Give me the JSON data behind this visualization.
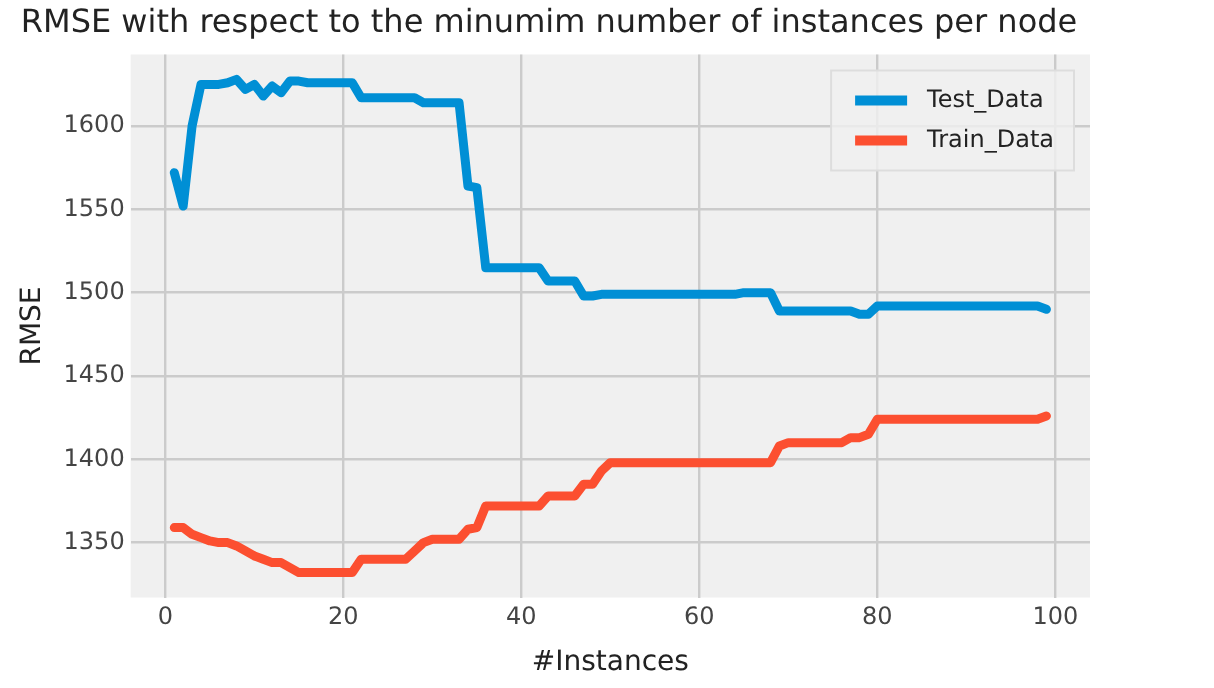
{
  "chart_data": {
    "type": "line",
    "title": "RMSE with respect to the minumim number of instances per node",
    "xlabel": "#Instances",
    "ylabel": "RMSE",
    "x": [
      1,
      2,
      3,
      4,
      5,
      6,
      7,
      8,
      9,
      10,
      11,
      12,
      13,
      14,
      15,
      16,
      17,
      18,
      19,
      20,
      21,
      22,
      23,
      24,
      25,
      26,
      27,
      28,
      29,
      30,
      31,
      32,
      33,
      34,
      35,
      36,
      37,
      38,
      39,
      40,
      41,
      42,
      43,
      44,
      45,
      46,
      47,
      48,
      49,
      50,
      51,
      52,
      53,
      54,
      55,
      56,
      57,
      58,
      59,
      60,
      61,
      62,
      63,
      64,
      65,
      66,
      67,
      68,
      69,
      70,
      71,
      72,
      73,
      74,
      75,
      76,
      77,
      78,
      79,
      80,
      81,
      82,
      83,
      84,
      85,
      86,
      87,
      88,
      89,
      90,
      91,
      92,
      93,
      94,
      95,
      96,
      97,
      98,
      99
    ],
    "series": [
      {
        "name": "Test_Data",
        "color": "#008fd5",
        "values": [
          1572,
          1552,
          1600,
          1625,
          1625,
          1625,
          1626,
          1628,
          1622,
          1625,
          1618,
          1624,
          1620,
          1627,
          1627,
          1626,
          1626,
          1626,
          1626,
          1626,
          1626,
          1617,
          1617,
          1617,
          1617,
          1617,
          1617,
          1617,
          1614,
          1614,
          1614,
          1614,
          1614,
          1564,
          1563,
          1515,
          1515,
          1515,
          1515,
          1515,
          1515,
          1515,
          1507,
          1507,
          1507,
          1507,
          1498,
          1498,
          1499,
          1499,
          1499,
          1499,
          1499,
          1499,
          1499,
          1499,
          1499,
          1499,
          1499,
          1499,
          1499,
          1499,
          1499,
          1499,
          1500,
          1500,
          1500,
          1500,
          1489,
          1489,
          1489,
          1489,
          1489,
          1489,
          1489,
          1489,
          1489,
          1487,
          1487,
          1492,
          1492,
          1492,
          1492,
          1492,
          1492,
          1492,
          1492,
          1492,
          1492,
          1492,
          1492,
          1492,
          1492,
          1492,
          1492,
          1492,
          1492,
          1492,
          1490
        ]
      },
      {
        "name": "Train_Data",
        "color": "#fc4f30",
        "values": [
          1359,
          1359,
          1355,
          1353,
          1351,
          1350,
          1350,
          1348,
          1345,
          1342,
          1340,
          1338,
          1338,
          1335,
          1332,
          1332,
          1332,
          1332,
          1332,
          1332,
          1332,
          1340,
          1340,
          1340,
          1340,
          1340,
          1340,
          1345,
          1350,
          1352,
          1352,
          1352,
          1352,
          1358,
          1359,
          1372,
          1372,
          1372,
          1372,
          1372,
          1372,
          1372,
          1378,
          1378,
          1378,
          1378,
          1385,
          1385,
          1393,
          1398,
          1398,
          1398,
          1398,
          1398,
          1398,
          1398,
          1398,
          1398,
          1398,
          1398,
          1398,
          1398,
          1398,
          1398,
          1398,
          1398,
          1398,
          1398,
          1408,
          1410,
          1410,
          1410,
          1410,
          1410,
          1410,
          1410,
          1413,
          1413,
          1415,
          1424,
          1424,
          1424,
          1424,
          1424,
          1424,
          1424,
          1424,
          1424,
          1424,
          1424,
          1424,
          1424,
          1424,
          1424,
          1424,
          1424,
          1424,
          1424,
          1426
        ]
      }
    ],
    "xlim": [
      -3.9,
      103.9
    ],
    "ylim": [
      1317,
      1643
    ],
    "xticks": [
      0,
      20,
      40,
      60,
      80,
      100
    ],
    "yticks": [
      1350,
      1400,
      1450,
      1500,
      1550,
      1600
    ],
    "grid": true,
    "legend": "top right",
    "marker": "none",
    "line_style": "solid"
  }
}
